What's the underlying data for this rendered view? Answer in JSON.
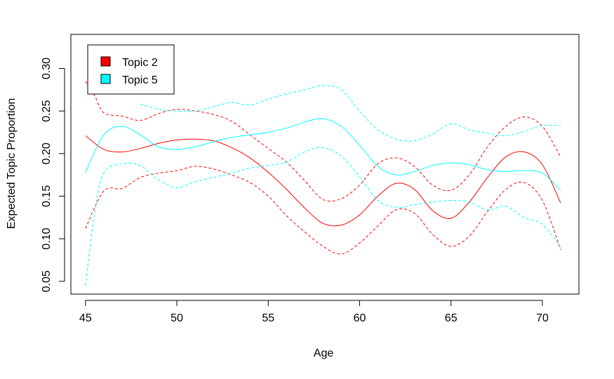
{
  "chart_data": {
    "type": "line",
    "xlabel": "Age",
    "ylabel": "Expected Topic Proportion",
    "xlim": [
      44.2,
      72.0
    ],
    "ylim": [
      0.035,
      0.34
    ],
    "x_ticks": [
      45,
      50,
      55,
      60,
      65,
      70
    ],
    "x_tick_labels": [
      "45",
      "50",
      "55",
      "60",
      "65",
      "70"
    ],
    "y_ticks": [
      0.05,
      0.1,
      0.15,
      0.2,
      0.25,
      0.3
    ],
    "y_tick_labels": [
      "0.05",
      "0.10",
      "0.15",
      "0.20",
      "0.25",
      "0.30"
    ],
    "grid": false,
    "legend_position": "top-left",
    "legend": [
      {
        "label": "Topic 2",
        "color": "#ff0000"
      },
      {
        "label": "Topic 5",
        "color": "#00ffff"
      }
    ],
    "series": [
      {
        "legend_index": 0,
        "color": "#ff0000",
        "style": "solid",
        "x": [
          45,
          46,
          47,
          48,
          49,
          50,
          51,
          52,
          53,
          54,
          55,
          56,
          57,
          58,
          59,
          60,
          61,
          62,
          63,
          64,
          65,
          66,
          67,
          68,
          69,
          70,
          71
        ],
        "values": [
          0.221,
          0.205,
          0.202,
          0.206,
          0.212,
          0.216,
          0.217,
          0.215,
          0.207,
          0.195,
          0.178,
          0.158,
          0.136,
          0.118,
          0.116,
          0.128,
          0.15,
          0.165,
          0.158,
          0.133,
          0.124,
          0.143,
          0.172,
          0.196,
          0.202,
          0.187,
          0.142
        ]
      },
      {
        "legend_index": 0,
        "color": "#ff0000",
        "style": "dashed",
        "x": [
          45,
          45.5,
          46,
          47,
          48,
          49,
          50,
          51,
          52,
          53,
          54,
          55,
          56,
          57,
          58,
          59,
          60,
          61,
          62,
          63,
          64,
          65,
          66,
          67,
          68,
          69,
          70,
          71
        ],
        "values": [
          0.285,
          0.268,
          0.248,
          0.244,
          0.239,
          0.247,
          0.252,
          0.25,
          0.246,
          0.238,
          0.222,
          0.206,
          0.19,
          0.168,
          0.146,
          0.147,
          0.163,
          0.188,
          0.195,
          0.185,
          0.163,
          0.157,
          0.175,
          0.208,
          0.232,
          0.243,
          0.232,
          0.196
        ]
      },
      {
        "legend_index": 0,
        "color": "#ff0000",
        "style": "dashed",
        "x": [
          45,
          46,
          47,
          48,
          49,
          50,
          51,
          52,
          53,
          54,
          55,
          56,
          57,
          58,
          59,
          60,
          61,
          62,
          63,
          64,
          65,
          66,
          67,
          68,
          69,
          70,
          71
        ],
        "values": [
          0.112,
          0.156,
          0.159,
          0.172,
          0.177,
          0.18,
          0.185,
          0.182,
          0.175,
          0.166,
          0.15,
          0.127,
          0.108,
          0.091,
          0.082,
          0.095,
          0.115,
          0.134,
          0.13,
          0.105,
          0.091,
          0.103,
          0.132,
          0.158,
          0.166,
          0.145,
          0.087
        ]
      },
      {
        "legend_index": 1,
        "color": "#00ffff",
        "style": "solid",
        "x": [
          45,
          46,
          47,
          48,
          49,
          50,
          51,
          52,
          53,
          54,
          55,
          56,
          57,
          58,
          59,
          60,
          61,
          62,
          63,
          64,
          65,
          66,
          67,
          68,
          69,
          70,
          71
        ],
        "values": [
          0.178,
          0.222,
          0.232,
          0.222,
          0.208,
          0.205,
          0.208,
          0.214,
          0.219,
          0.222,
          0.225,
          0.23,
          0.237,
          0.241,
          0.232,
          0.21,
          0.185,
          0.175,
          0.179,
          0.186,
          0.189,
          0.187,
          0.181,
          0.179,
          0.18,
          0.177,
          0.157
        ]
      },
      {
        "legend_index": 1,
        "color": "#00ffff",
        "style": "dashed",
        "x": [
          48,
          49,
          50,
          51,
          52,
          53,
          54,
          55,
          56,
          57,
          58,
          59,
          60,
          61,
          62,
          63,
          64,
          65,
          66,
          67,
          68,
          69,
          70,
          71
        ],
        "values": [
          0.258,
          0.252,
          0.25,
          0.25,
          0.255,
          0.26,
          0.257,
          0.264,
          0.27,
          0.275,
          0.28,
          0.275,
          0.25,
          0.228,
          0.217,
          0.215,
          0.223,
          0.235,
          0.228,
          0.224,
          0.221,
          0.226,
          0.233,
          0.233
        ]
      },
      {
        "legend_index": 1,
        "color": "#00ffff",
        "style": "dashed",
        "x": [
          45,
          45.5,
          46,
          47,
          48,
          49,
          50,
          51,
          52,
          53,
          54,
          55,
          56,
          57,
          58,
          59,
          60,
          61,
          62,
          63,
          64,
          65,
          66,
          67,
          68,
          69,
          70,
          71
        ],
        "values": [
          0.045,
          0.13,
          0.177,
          0.188,
          0.186,
          0.169,
          0.16,
          0.167,
          0.172,
          0.177,
          0.183,
          0.186,
          0.19,
          0.202,
          0.207,
          0.197,
          0.173,
          0.145,
          0.137,
          0.14,
          0.143,
          0.145,
          0.143,
          0.134,
          0.138,
          0.125,
          0.117,
          0.09
        ]
      }
    ]
  }
}
